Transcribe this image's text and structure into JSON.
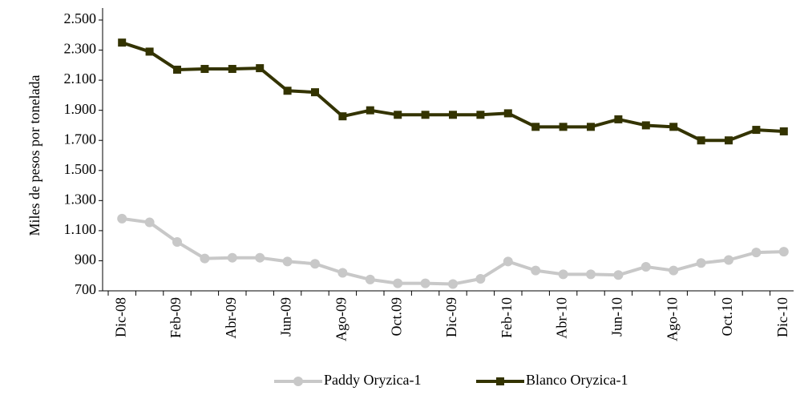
{
  "chart_data": {
    "type": "line",
    "y_label": "Miles de pesos por tonelada",
    "categories": [
      "Dic-08",
      null,
      "Feb-09",
      null,
      "Abr-09",
      null,
      "Jun-09",
      null,
      "Ago-09",
      null,
      "Oct.09",
      null,
      "Dic-09",
      null,
      "Feb-10",
      null,
      "Abr-10",
      null,
      "Jun-10",
      null,
      "Ago-10",
      null,
      "Oct.10",
      null,
      "Dic-10"
    ],
    "series": [
      {
        "name": "Paddy Oryzica-1",
        "color": "#c8c8c8",
        "marker": "circle",
        "values": [
          1180,
          1155,
          1025,
          915,
          920,
          920,
          895,
          880,
          820,
          775,
          750,
          750,
          745,
          780,
          895,
          835,
          810,
          810,
          805,
          860,
          835,
          885,
          905,
          955,
          960
        ]
      },
      {
        "name": "Blanco Oryzica-1",
        "color": "#333300",
        "marker": "square",
        "values": [
          2350,
          2290,
          2170,
          2175,
          2175,
          2180,
          2030,
          2020,
          1860,
          1900,
          1870,
          1870,
          1870,
          1870,
          1880,
          1790,
          1790,
          1790,
          1840,
          1800,
          1790,
          1700,
          1700,
          1770,
          1760
        ]
      }
    ],
    "ylim": [
      700,
      2500
    ],
    "yticks": [
      700,
      900,
      {
        "value": 1100,
        "label": "1.100"
      },
      {
        "value": 1300,
        "label": "1.300"
      },
      {
        "value": 1500,
        "label": "1.500"
      },
      {
        "value": 1700,
        "label": "1.700"
      },
      {
        "value": 1900,
        "label": "1.900"
      },
      {
        "value": 2100,
        "label": "2.100"
      },
      {
        "value": 2300,
        "label": "2.300"
      },
      {
        "value": 2500,
        "label": "2.500"
      }
    ],
    "grid": false,
    "legend": "bottom"
  }
}
